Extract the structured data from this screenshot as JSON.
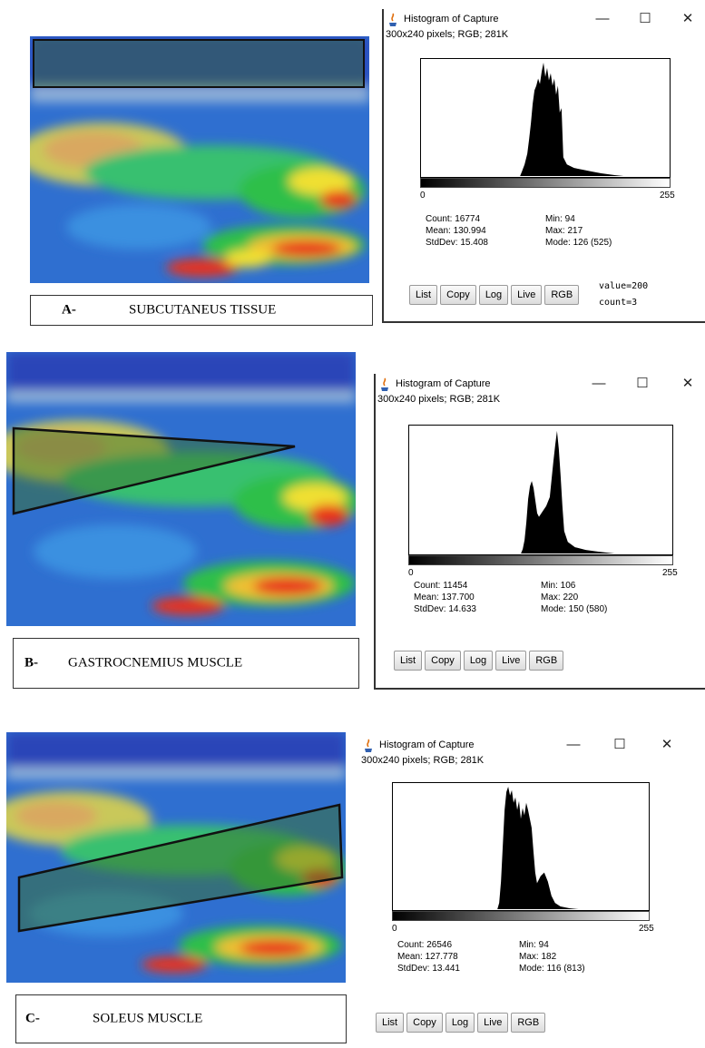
{
  "panels": [
    {
      "letter": "A-",
      "name": "SUBCUTANEUS TISSUE",
      "histogram": {
        "window_title": "Histogram of Capture",
        "subtitle": "300x240 pixels; RGB; 281K",
        "axis_min": "0",
        "axis_max": "255",
        "stats": {
          "count": "Count: 16774",
          "mean": "Mean: 130.994",
          "stddev": "StdDev: 15.408",
          "min": "Min: 94",
          "max": "Max: 217",
          "mode": "Mode: 126 (525)"
        },
        "buttons": [
          "List",
          "Copy",
          "Log",
          "Live",
          "RGB"
        ],
        "readout": {
          "value": "value=200",
          "count": "count=3"
        }
      }
    },
    {
      "letter": "B-",
      "name": "GASTROCNEMIUS MUSCLE",
      "histogram": {
        "window_title": "Histogram of Capture",
        "subtitle": "300x240 pixels; RGB; 281K",
        "axis_min": "0",
        "axis_max": "255",
        "stats": {
          "count": "Count: 11454",
          "mean": "Mean: 137.700",
          "stddev": "StdDev: 14.633",
          "min": "Min: 106",
          "max": "Max: 220",
          "mode": "Mode: 150 (580)"
        },
        "buttons": [
          "List",
          "Copy",
          "Log",
          "Live",
          "RGB"
        ]
      }
    },
    {
      "letter": "C-",
      "name": "SOLEUS MUSCLE",
      "histogram": {
        "window_title": "Histogram of Capture",
        "subtitle": "300x240 pixels; RGB; 281K",
        "axis_min": "0",
        "axis_max": "255",
        "stats": {
          "count": "Count: 26546",
          "mean": "Mean: 127.778",
          "stddev": "StdDev: 13.441",
          "min": "Min: 94",
          "max": "Max: 182",
          "mode": "Mode: 116 (813)"
        },
        "buttons": [
          "List",
          "Copy",
          "Log",
          "Live",
          "RGB"
        ]
      }
    }
  ],
  "window_controls": {
    "minimize": "—",
    "maximize": "☐",
    "close": "✕"
  },
  "icons": {
    "app": "java-cup-icon",
    "minimize": "minimize-icon",
    "maximize": "maximize-icon",
    "close": "close-icon"
  },
  "colors": {
    "roi_fill": "#3b6f2a",
    "histogram_bar": "#000000",
    "heat_red": "#e8321c",
    "heat_yellow": "#f0e030",
    "heat_green": "#2fbf4a",
    "heat_blue": "#2a4fc8"
  }
}
